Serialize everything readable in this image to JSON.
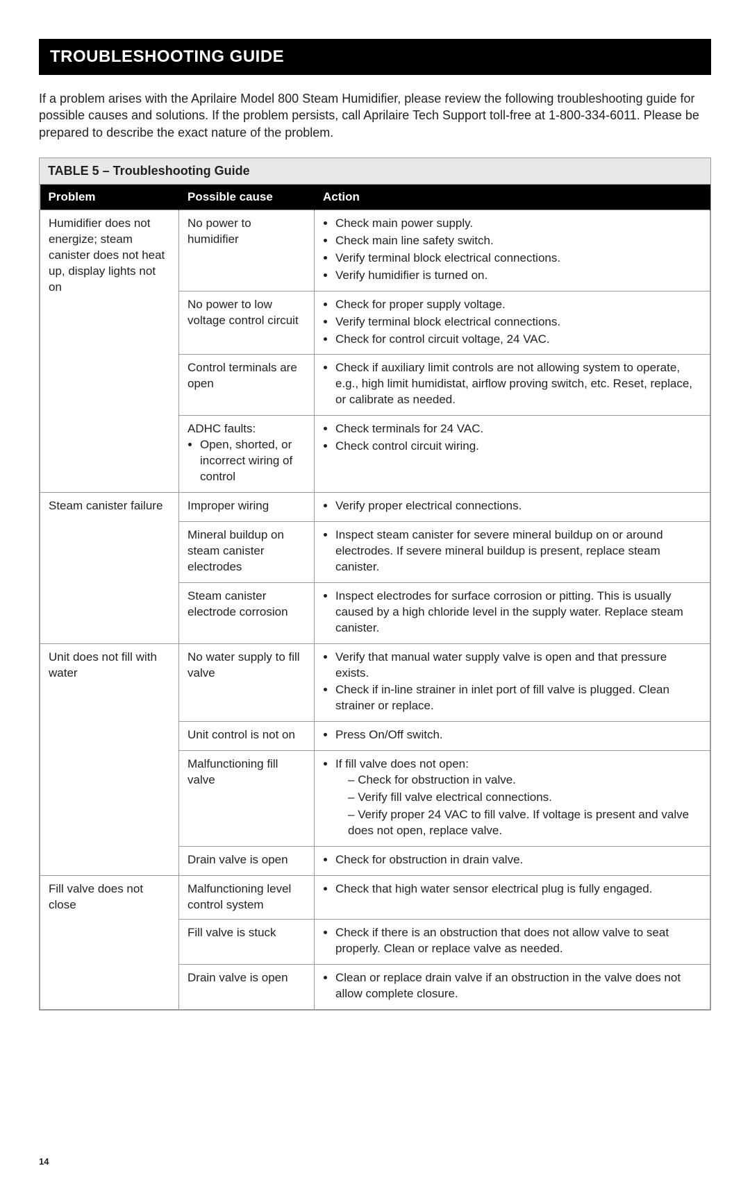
{
  "title": "TROUBLESHOOTING GUIDE",
  "intro": "If a problem arises with the Aprilaire Model 800 Steam Humidifier, please review the following troubleshooting guide for possible causes and solutions. If the problem persists, call Aprilaire Tech Support toll-free at 1-800-334-6011. Please be prepared to describe the exact nature of the problem.",
  "table_caption": "TABLE 5 – Troubleshooting Guide",
  "columns": {
    "problem": "Problem",
    "cause": "Possible cause",
    "action": "Action"
  },
  "page_number": "14",
  "groups": [
    {
      "problem": "Humidifier does not energize; steam canister does not heat up, display lights not on",
      "rows": [
        {
          "cause_text": "No power to humidifier",
          "actions": [
            "Check main power supply.",
            "Check main line safety switch.",
            "Verify terminal block electrical connections.",
            "Verify humidifier is turned on."
          ]
        },
        {
          "cause_text": "No power to low voltage control circuit",
          "actions": [
            "Check for proper supply voltage.",
            "Verify terminal block electrical connections.",
            "Check for control circuit voltage, 24 VAC."
          ]
        },
        {
          "cause_text": "Control terminals are open",
          "actions": [
            "Check if auxiliary limit controls are not allowing system to operate, e.g., high limit humidistat, airflow proving switch, etc. Reset, replace, or calibrate as needed."
          ]
        },
        {
          "cause_text": "ADHC faults:",
          "cause_sub": [
            "Open, shorted, or incorrect wiring of control"
          ],
          "actions": [
            "Check terminals for 24 VAC.",
            "Check control circuit wiring."
          ]
        }
      ]
    },
    {
      "problem": "Steam canister failure",
      "rows": [
        {
          "cause_text": "Improper wiring",
          "actions": [
            "Verify proper electrical connections."
          ]
        },
        {
          "cause_text": "Mineral buildup on steam canister electrodes",
          "actions": [
            "Inspect steam canister for severe mineral buildup on or around electrodes. If severe mineral buildup is present, replace steam canister."
          ]
        },
        {
          "cause_text": "Steam canister electrode corrosion",
          "actions": [
            "Inspect electrodes for surface corrosion or pitting. This is usually caused by a high chloride level in the supply water. Replace steam canister."
          ]
        }
      ]
    },
    {
      "problem": "Unit does not fill with water",
      "rows": [
        {
          "cause_text": "No water supply to fill valve",
          "actions": [
            "Verify that manual water supply valve is open and that pressure exists.",
            "Check if in-line strainer in inlet port of fill valve is plugged. Clean strainer or replace."
          ]
        },
        {
          "cause_text": "Unit control is not on",
          "actions": [
            "Press On/Off switch."
          ]
        },
        {
          "cause_text": "Malfunctioning fill valve",
          "complex_action": {
            "lead": "If fill valve does not open:",
            "dash": [
              "Check for obstruction in valve.",
              "Verify fill valve electrical connections.",
              "Verify proper 24 VAC to fill valve. If voltage is present and valve does not open, replace valve."
            ]
          }
        },
        {
          "cause_text": "Drain valve is open",
          "actions": [
            "Check for obstruction in drain valve."
          ]
        }
      ]
    },
    {
      "problem": "Fill valve does not close",
      "rows": [
        {
          "cause_text": "Malfunctioning level control system",
          "actions": [
            "Check that high water sensor electrical plug is fully engaged."
          ]
        },
        {
          "cause_text": "Fill valve is stuck",
          "actions": [
            "Check if there is an obstruction that does not allow valve to seat properly. Clean or replace valve as needed."
          ]
        },
        {
          "cause_text": "Drain valve is open",
          "actions": [
            "Clean or replace drain valve if an obstruction in the valve does not allow complete closure."
          ]
        }
      ]
    }
  ]
}
